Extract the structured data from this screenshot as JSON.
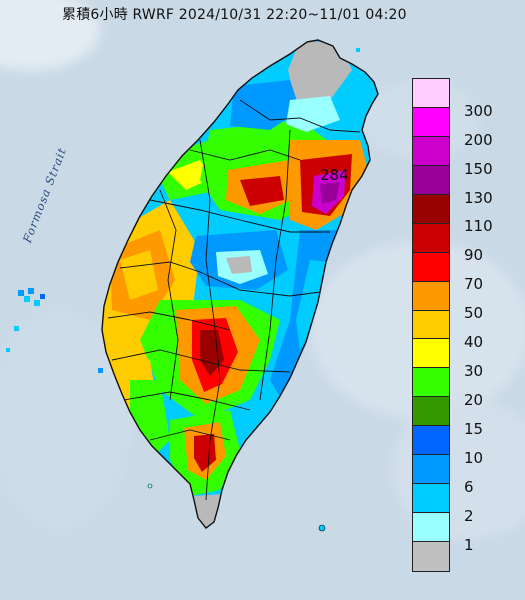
{
  "title": "累積6小時 RWRF 2024/10/31 22:20~11/01 04:20",
  "sea_label": "Formosa Strait",
  "peak_value": "284",
  "legend": {
    "levels": [
      {
        "label": "300",
        "color": "#ffccff"
      },
      {
        "label": "200",
        "color": "#ff00ff"
      },
      {
        "label": "150",
        "color": "#cc00cc"
      },
      {
        "label": "130",
        "color": "#990099"
      },
      {
        "label": "110",
        "color": "#990000"
      },
      {
        "label": "90",
        "color": "#cc0000"
      },
      {
        "label": "70",
        "color": "#ff0000"
      },
      {
        "label": "50",
        "color": "#ff9900"
      },
      {
        "label": "40",
        "color": "#ffcc00"
      },
      {
        "label": "30",
        "color": "#ffff00"
      },
      {
        "label": "20",
        "color": "#33ff00"
      },
      {
        "label": "15",
        "color": "#339900"
      },
      {
        "label": "10",
        "color": "#0066ff"
      },
      {
        "label": "6",
        "color": "#0099ff"
      },
      {
        "label": "2",
        "color": "#00ccff"
      },
      {
        "label": "1",
        "color": "#99ffff"
      },
      {
        "label": "",
        "color": "#c0c0c0"
      }
    ]
  },
  "colors": {
    "sea": "#c9d9e6",
    "no_rain": "#b9b9b9",
    "boundary": "#101010"
  }
}
